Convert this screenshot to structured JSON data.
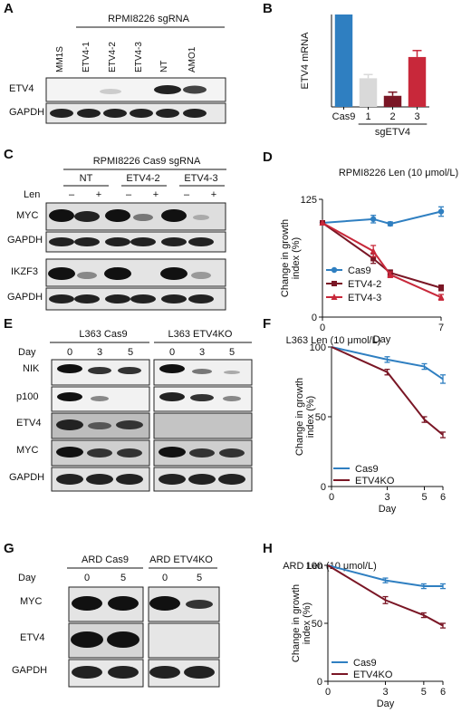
{
  "panels": {
    "A": {
      "letter": "A",
      "header": "RPMI8226 sgRNA",
      "lanes": [
        "MM1S",
        "ETV4-1",
        "ETV4-2",
        "ETV4-3",
        "NT",
        "AMO1"
      ],
      "rows": [
        "ETV4",
        "GAPDH"
      ]
    },
    "C": {
      "letter": "C",
      "header": "RPMI8226 Cas9 sgRNA",
      "groups": [
        "NT",
        "ETV4-2",
        "ETV4-3"
      ],
      "treatment_label": "Len",
      "treatment_marks": [
        "–",
        "+",
        "–",
        "+",
        "–",
        "+"
      ],
      "rows": [
        "MYC",
        "GAPDH",
        "IKZF3",
        "GAPDH"
      ]
    },
    "E": {
      "letter": "E",
      "groups": [
        "L363 Cas9",
        "L363 ETV4KO"
      ],
      "day_label": "Day",
      "days": [
        "0",
        "3",
        "5",
        "0",
        "3",
        "5"
      ],
      "rows": [
        "NIK",
        "p100",
        "ETV4",
        "MYC",
        "GAPDH"
      ]
    },
    "G": {
      "letter": "G",
      "groups": [
        "ARD Cas9",
        "ARD ETV4KO"
      ],
      "day_label": "Day",
      "days": [
        "0",
        "5",
        "0",
        "5"
      ],
      "rows": [
        "MYC",
        "ETV4",
        "GAPDH"
      ]
    }
  },
  "chart_data": [
    {
      "panel": "B",
      "type": "bar",
      "title": "",
      "ylabel": "ETV4 mRNA",
      "xlabel": "sgETV4",
      "categories": [
        "Cas9",
        "1",
        "2",
        "3"
      ],
      "values": [
        1.0,
        0.31,
        0.12,
        0.54
      ],
      "errors": [
        0.0,
        0.04,
        0.04,
        0.07
      ],
      "colors": [
        "#2f7fc1",
        "#d9d9d9",
        "#7a1625",
        "#c8283a"
      ],
      "ylim": [
        0,
        1.0
      ],
      "yticks": [],
      "grid": false
    },
    {
      "panel": "D",
      "type": "line",
      "title": "RPMI8226 Len (10 μmol/L)",
      "ylabel": "Change in growth index (%)",
      "xlabel": "Day",
      "xlim": [
        0,
        7
      ],
      "ylim": [
        0,
        125
      ],
      "xticks": [
        "0",
        "7"
      ],
      "yticks": [
        "0",
        "125"
      ],
      "legend": "bottom-left",
      "grid": false,
      "series": [
        {
          "name": "Cas9",
          "color": "#2f7fc1",
          "marker": "circle",
          "x": [
            0,
            3,
            4,
            7
          ],
          "y": [
            100,
            104,
            99,
            112
          ],
          "err": [
            0,
            4,
            2,
            5
          ]
        },
        {
          "name": "ETV4-2",
          "color": "#7a1625",
          "marker": "square",
          "x": [
            0,
            3,
            4,
            7
          ],
          "y": [
            100,
            62,
            47,
            31
          ],
          "err": [
            0,
            5,
            3,
            3
          ]
        },
        {
          "name": "ETV4-3",
          "color": "#c8283a",
          "marker": "triangle",
          "x": [
            0,
            3,
            4,
            7
          ],
          "y": [
            100,
            70,
            45,
            21
          ],
          "err": [
            0,
            6,
            3,
            3
          ]
        }
      ]
    },
    {
      "panel": "F",
      "type": "line",
      "title": "L363 Len (10 μmol/L)",
      "ylabel": "Change in growth index (%)",
      "xlabel": "Day",
      "xlim": [
        0,
        6
      ],
      "ylim": [
        0,
        100
      ],
      "xticks": [
        "0",
        "3",
        "5",
        "6"
      ],
      "yticks": [
        "0",
        "50",
        "100"
      ],
      "legend": "bottom-left",
      "grid": false,
      "series": [
        {
          "name": "Cas9",
          "color": "#2f7fc1",
          "x": [
            0,
            3,
            5,
            6
          ],
          "y": [
            100,
            91,
            86,
            77
          ],
          "err": [
            0,
            2,
            2,
            3
          ]
        },
        {
          "name": "ETV4KO",
          "color": "#7a1625",
          "x": [
            0,
            3,
            5,
            6
          ],
          "y": [
            100,
            82,
            48,
            37
          ],
          "err": [
            0,
            2,
            2,
            2
          ]
        }
      ]
    },
    {
      "panel": "H",
      "type": "line",
      "title": "ARD Len (10 μmol/L)",
      "ylabel": "Change in growth index (%)",
      "xlabel": "Day",
      "xlim": [
        0,
        6
      ],
      "ylim": [
        0,
        100
      ],
      "xticks": [
        "0",
        "3",
        "5",
        "6"
      ],
      "yticks": [
        "0",
        "50",
        "100"
      ],
      "legend": "bottom-left",
      "grid": false,
      "series": [
        {
          "name": "Cas9",
          "color": "#2f7fc1",
          "x": [
            0,
            3,
            5,
            6
          ],
          "y": [
            100,
            87,
            82,
            82
          ],
          "err": [
            0,
            2,
            2,
            2
          ]
        },
        {
          "name": "ETV4KO",
          "color": "#7a1625",
          "x": [
            0,
            3,
            5,
            6
          ],
          "y": [
            100,
            70,
            57,
            48
          ],
          "err": [
            0,
            3,
            2,
            2
          ]
        }
      ]
    }
  ]
}
